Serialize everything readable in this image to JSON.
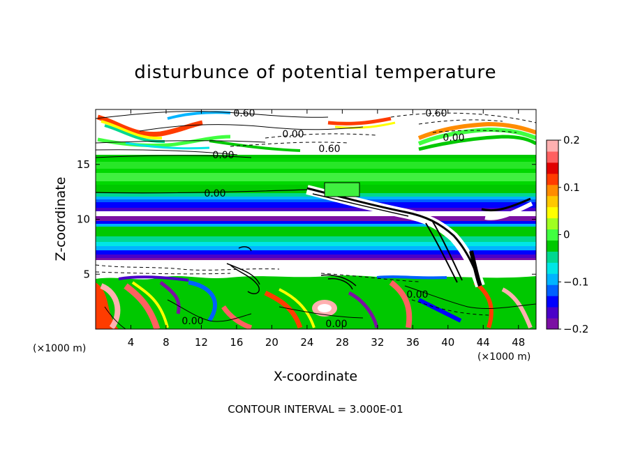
{
  "chart_data": {
    "type": "heatmap",
    "title": "disturbunce of potential temperature",
    "xlabel": "X-coordinate",
    "ylabel": "Z-coordinate",
    "x_unit": "(×1000 m)",
    "x_unit_right": "(×1000 m)",
    "xlim": [
      0,
      50
    ],
    "ylim": [
      0,
      20
    ],
    "x_ticks": [
      "4",
      "8",
      "12",
      "16",
      "20",
      "24",
      "28",
      "32",
      "36",
      "40",
      "44",
      "48"
    ],
    "x_tick_values": [
      4,
      8,
      12,
      16,
      20,
      24,
      28,
      32,
      36,
      40,
      44,
      48
    ],
    "y_ticks": [
      "5",
      "10",
      "15"
    ],
    "y_tick_values": [
      5,
      10,
      15
    ],
    "colorbar": {
      "min": -0.2,
      "max": 0.2,
      "ticks": [
        "0.2",
        "0.1",
        "0",
        "−0.1",
        "−0.2"
      ],
      "tick_values": [
        0.2,
        0.1,
        0,
        -0.1,
        -0.2
      ],
      "colors": [
        "#7b0fa3",
        "#4a00c8",
        "#0000ff",
        "#0060ff",
        "#00b4ff",
        "#00e6e6",
        "#00d890",
        "#00c800",
        "#40ff40",
        "#a0ff20",
        "#ffff00",
        "#ffc800",
        "#ff8c00",
        "#ff3c00",
        "#e00000",
        "#ff6060",
        "#ffb0b0"
      ]
    },
    "contour_labels": [
      "0.60",
      "0.60",
      "0.00",
      "0.00",
      "0.60",
      "0.00",
      "0.00",
      "0.00",
      "0.00",
      "0.00"
    ],
    "contour_interval_text": "CONTOUR INTERVAL = 3.000E-01"
  }
}
